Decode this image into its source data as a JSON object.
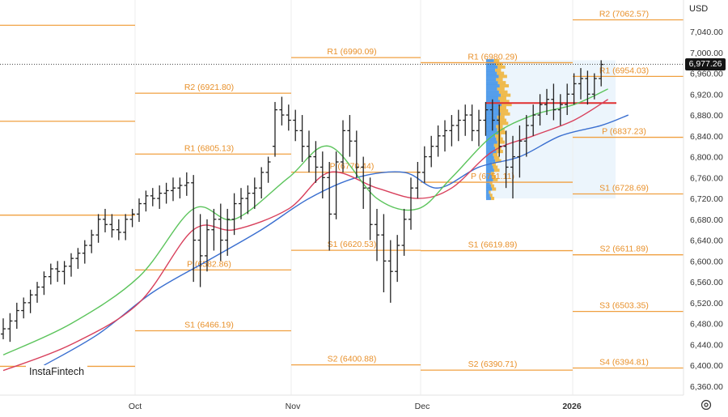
{
  "currency": "USD",
  "brand": "InstaFintech",
  "settings_icon": "gear-icon",
  "last_price": "6,977.26",
  "colors": {
    "pivot": "#f0a040",
    "price_bar": "#222222",
    "ma_fast": "#5cc45c",
    "ma_mid": "#d8405c",
    "ma_slow": "#3a6fd0",
    "poc": "#e03030",
    "profile_buy": "#3b8ee8",
    "profile_sell": "#f0b030",
    "value_area": "#e6f2fb"
  },
  "chart_data": {
    "type": "ohlc",
    "y_axis": {
      "ticks": [
        "7,040.00",
        "7,000.00",
        "6,960.00",
        "6,920.00",
        "6,880.00",
        "6,840.00",
        "6,800.00",
        "6,760.00",
        "6,720.00",
        "6,680.00",
        "6,640.00",
        "6,600.00",
        "6,560.00",
        "6,520.00",
        "6,480.00",
        "6,440.00",
        "6,400.00",
        "6,360.00"
      ],
      "range": [
        6340,
        7080
      ]
    },
    "x_axis": {
      "labels": [
        "Oct",
        "Nov",
        "Dec",
        "2026"
      ]
    },
    "pivot_levels": [
      {
        "label": "R2 (7062.57)",
        "value": 7062.57,
        "period": "month3"
      },
      {
        "label": "R1 (6990.09)",
        "value": 6990.09,
        "period": "month1"
      },
      {
        "label": "R1 (6980.29)",
        "value": 6980.29,
        "period": "month2"
      },
      {
        "label": "R1 (6954.03)",
        "value": 6954.03,
        "period": "month3"
      },
      {
        "label": "R2 (6921.80)",
        "value": 6921.8,
        "period": "month0"
      },
      {
        "label": "P (6837.23)",
        "value": 6837.23,
        "period": "month3"
      },
      {
        "label": "R1 (6805.13)",
        "value": 6805.13,
        "period": "month0"
      },
      {
        "label": "P (6770.44)",
        "value": 6770.44,
        "period": "month1"
      },
      {
        "label": "P (6751.11)",
        "value": 6751.11,
        "period": "month2"
      },
      {
        "label": "S1 (6728.69)",
        "value": 6728.69,
        "period": "month3"
      },
      {
        "label": "S1 (6620.53)",
        "value": 6620.53,
        "period": "month1"
      },
      {
        "label": "S1 (6619.89)",
        "value": 6619.89,
        "period": "month2"
      },
      {
        "label": "S2 (6611.89)",
        "value": 6611.89,
        "period": "month3"
      },
      {
        "label": "P (6582.86)",
        "value": 6582.86,
        "period": "month0"
      },
      {
        "label": "S3 (6503.35)",
        "value": 6503.35,
        "period": "month3"
      },
      {
        "label": "S1 (6466.19)",
        "value": 6466.19,
        "period": "month0"
      },
      {
        "label": "S2 (6400.88)",
        "value": 6400.88,
        "period": "month1"
      },
      {
        "label": "S4 (6394.81)",
        "value": 6394.81,
        "period": "month3"
      },
      {
        "label": "S2 (6390.71)",
        "value": 6390.71,
        "period": "month2"
      }
    ],
    "extra_levels": [
      {
        "value": 7052,
        "period": "prior"
      },
      {
        "value": 6868,
        "period": "prior"
      },
      {
        "value": 6688,
        "period": "prior"
      },
      {
        "value": 6398,
        "period": "prior"
      }
    ],
    "poc_value": 6903,
    "last_value": 6977.26,
    "ohlc": [
      [
        6460,
        6490,
        6450,
        6470
      ],
      [
        6470,
        6500,
        6445,
        6485
      ],
      [
        6485,
        6520,
        6470,
        6505
      ],
      [
        6505,
        6530,
        6490,
        6520
      ],
      [
        6520,
        6545,
        6500,
        6535
      ],
      [
        6535,
        6560,
        6520,
        6550
      ],
      [
        6550,
        6580,
        6535,
        6570
      ],
      [
        6570,
        6595,
        6555,
        6585
      ],
      [
        6585,
        6600,
        6560,
        6580
      ],
      [
        6580,
        6600,
        6555,
        6590
      ],
      [
        6590,
        6615,
        6570,
        6605
      ],
      [
        6605,
        6625,
        6585,
        6615
      ],
      [
        6615,
        6640,
        6595,
        6630
      ],
      [
        6630,
        6660,
        6615,
        6650
      ],
      [
        6650,
        6690,
        6635,
        6680
      ],
      [
        6680,
        6700,
        6655,
        6670
      ],
      [
        6670,
        6690,
        6645,
        6660
      ],
      [
        6660,
        6680,
        6640,
        6655
      ],
      [
        6655,
        6690,
        6640,
        6680
      ],
      [
        6680,
        6700,
        6665,
        6690
      ],
      [
        6690,
        6720,
        6675,
        6710
      ],
      [
        6710,
        6735,
        6695,
        6725
      ],
      [
        6725,
        6740,
        6705,
        6720
      ],
      [
        6720,
        6745,
        6700,
        6730
      ],
      [
        6730,
        6750,
        6710,
        6735
      ],
      [
        6735,
        6760,
        6715,
        6740
      ],
      [
        6740,
        6760,
        6720,
        6745
      ],
      [
        6745,
        6770,
        6725,
        6750
      ],
      [
        6750,
        6765,
        6560,
        6640
      ],
      [
        6640,
        6690,
        6550,
        6610
      ],
      [
        6610,
        6680,
        6580,
        6660
      ],
      [
        6660,
        6700,
        6620,
        6680
      ],
      [
        6680,
        6710,
        6600,
        6640
      ],
      [
        6640,
        6700,
        6610,
        6680
      ],
      [
        6680,
        6730,
        6650,
        6710
      ],
      [
        6710,
        6740,
        6680,
        6720
      ],
      [
        6720,
        6745,
        6690,
        6730
      ],
      [
        6730,
        6760,
        6700,
        6740
      ],
      [
        6740,
        6780,
        6720,
        6770
      ],
      [
        6770,
        6800,
        6750,
        6790
      ],
      [
        6820,
        6905,
        6800,
        6890
      ],
      [
        6890,
        6915,
        6860,
        6880
      ],
      [
        6880,
        6900,
        6850,
        6870
      ],
      [
        6870,
        6890,
        6830,
        6850
      ],
      [
        6850,
        6880,
        6790,
        6820
      ],
      [
        6820,
        6850,
        6770,
        6800
      ],
      [
        6800,
        6830,
        6750,
        6780
      ],
      [
        6780,
        6810,
        6720,
        6760
      ],
      [
        6760,
        6790,
        6620,
        6690
      ],
      [
        6690,
        6810,
        6680,
        6790
      ],
      [
        6790,
        6870,
        6770,
        6850
      ],
      [
        6850,
        6880,
        6800,
        6830
      ],
      [
        6830,
        6850,
        6760,
        6780
      ],
      [
        6780,
        6800,
        6700,
        6740
      ],
      [
        6740,
        6760,
        6640,
        6670
      ],
      [
        6670,
        6700,
        6600,
        6650
      ],
      [
        6650,
        6690,
        6540,
        6600
      ],
      [
        6600,
        6640,
        6520,
        6580
      ],
      [
        6580,
        6650,
        6560,
        6630
      ],
      [
        6630,
        6700,
        6610,
        6680
      ],
      [
        6680,
        6760,
        6660,
        6740
      ],
      [
        6740,
        6790,
        6720,
        6770
      ],
      [
        6770,
        6820,
        6750,
        6800
      ],
      [
        6800,
        6840,
        6780,
        6820
      ],
      [
        6820,
        6860,
        6800,
        6840
      ],
      [
        6840,
        6870,
        6810,
        6850
      ],
      [
        6850,
        6880,
        6820,
        6860
      ],
      [
        6860,
        6890,
        6830,
        6870
      ],
      [
        6870,
        6900,
        6840,
        6880
      ],
      [
        6880,
        6900,
        6830,
        6850
      ],
      [
        6850,
        6890,
        6820,
        6870
      ],
      [
        6870,
        6905,
        6840,
        6890
      ],
      [
        6890,
        6910,
        6850,
        6870
      ],
      [
        6870,
        6900,
        6800,
        6820
      ],
      [
        6820,
        6850,
        6740,
        6780
      ],
      [
        6780,
        6840,
        6720,
        6800
      ],
      [
        6800,
        6860,
        6760,
        6830
      ],
      [
        6830,
        6880,
        6800,
        6860
      ],
      [
        6860,
        6900,
        6840,
        6880
      ],
      [
        6880,
        6920,
        6860,
        6900
      ],
      [
        6900,
        6930,
        6880,
        6910
      ],
      [
        6910,
        6940,
        6870,
        6890
      ],
      [
        6890,
        6920,
        6860,
        6900
      ],
      [
        6900,
        6940,
        6880,
        6920
      ],
      [
        6920,
        6960,
        6900,
        6940
      ],
      [
        6940,
        6970,
        6910,
        6950
      ],
      [
        6950,
        6965,
        6900,
        6920
      ],
      [
        6920,
        6960,
        6910,
        6950
      ],
      [
        6950,
        6985,
        6935,
        6977
      ]
    ],
    "ma_fast": [
      [
        0,
        6420
      ],
      [
        10,
        6480
      ],
      [
        20,
        6570
      ],
      [
        28,
        6700
      ],
      [
        34,
        6680
      ],
      [
        42,
        6760
      ],
      [
        48,
        6820
      ],
      [
        55,
        6720
      ],
      [
        61,
        6700
      ],
      [
        66,
        6760
      ],
      [
        72,
        6840
      ],
      [
        78,
        6880
      ],
      [
        84,
        6900
      ],
      [
        89,
        6930
      ]
    ],
    "ma_mid": [
      [
        0,
        6390
      ],
      [
        10,
        6440
      ],
      [
        20,
        6520
      ],
      [
        28,
        6660
      ],
      [
        34,
        6660
      ],
      [
        42,
        6700
      ],
      [
        48,
        6770
      ],
      [
        55,
        6740
      ],
      [
        61,
        6720
      ],
      [
        66,
        6740
      ],
      [
        72,
        6810
      ],
      [
        78,
        6840
      ],
      [
        84,
        6870
      ],
      [
        89,
        6910
      ]
    ],
    "ma_slow": [
      [
        6,
        6400
      ],
      [
        14,
        6460
      ],
      [
        22,
        6540
      ],
      [
        30,
        6600
      ],
      [
        38,
        6660
      ],
      [
        45,
        6720
      ],
      [
        52,
        6760
      ],
      [
        59,
        6770
      ],
      [
        64,
        6740
      ],
      [
        70,
        6780
      ],
      [
        76,
        6800
      ],
      [
        82,
        6840
      ],
      [
        88,
        6860
      ],
      [
        92,
        6880
      ]
    ]
  }
}
